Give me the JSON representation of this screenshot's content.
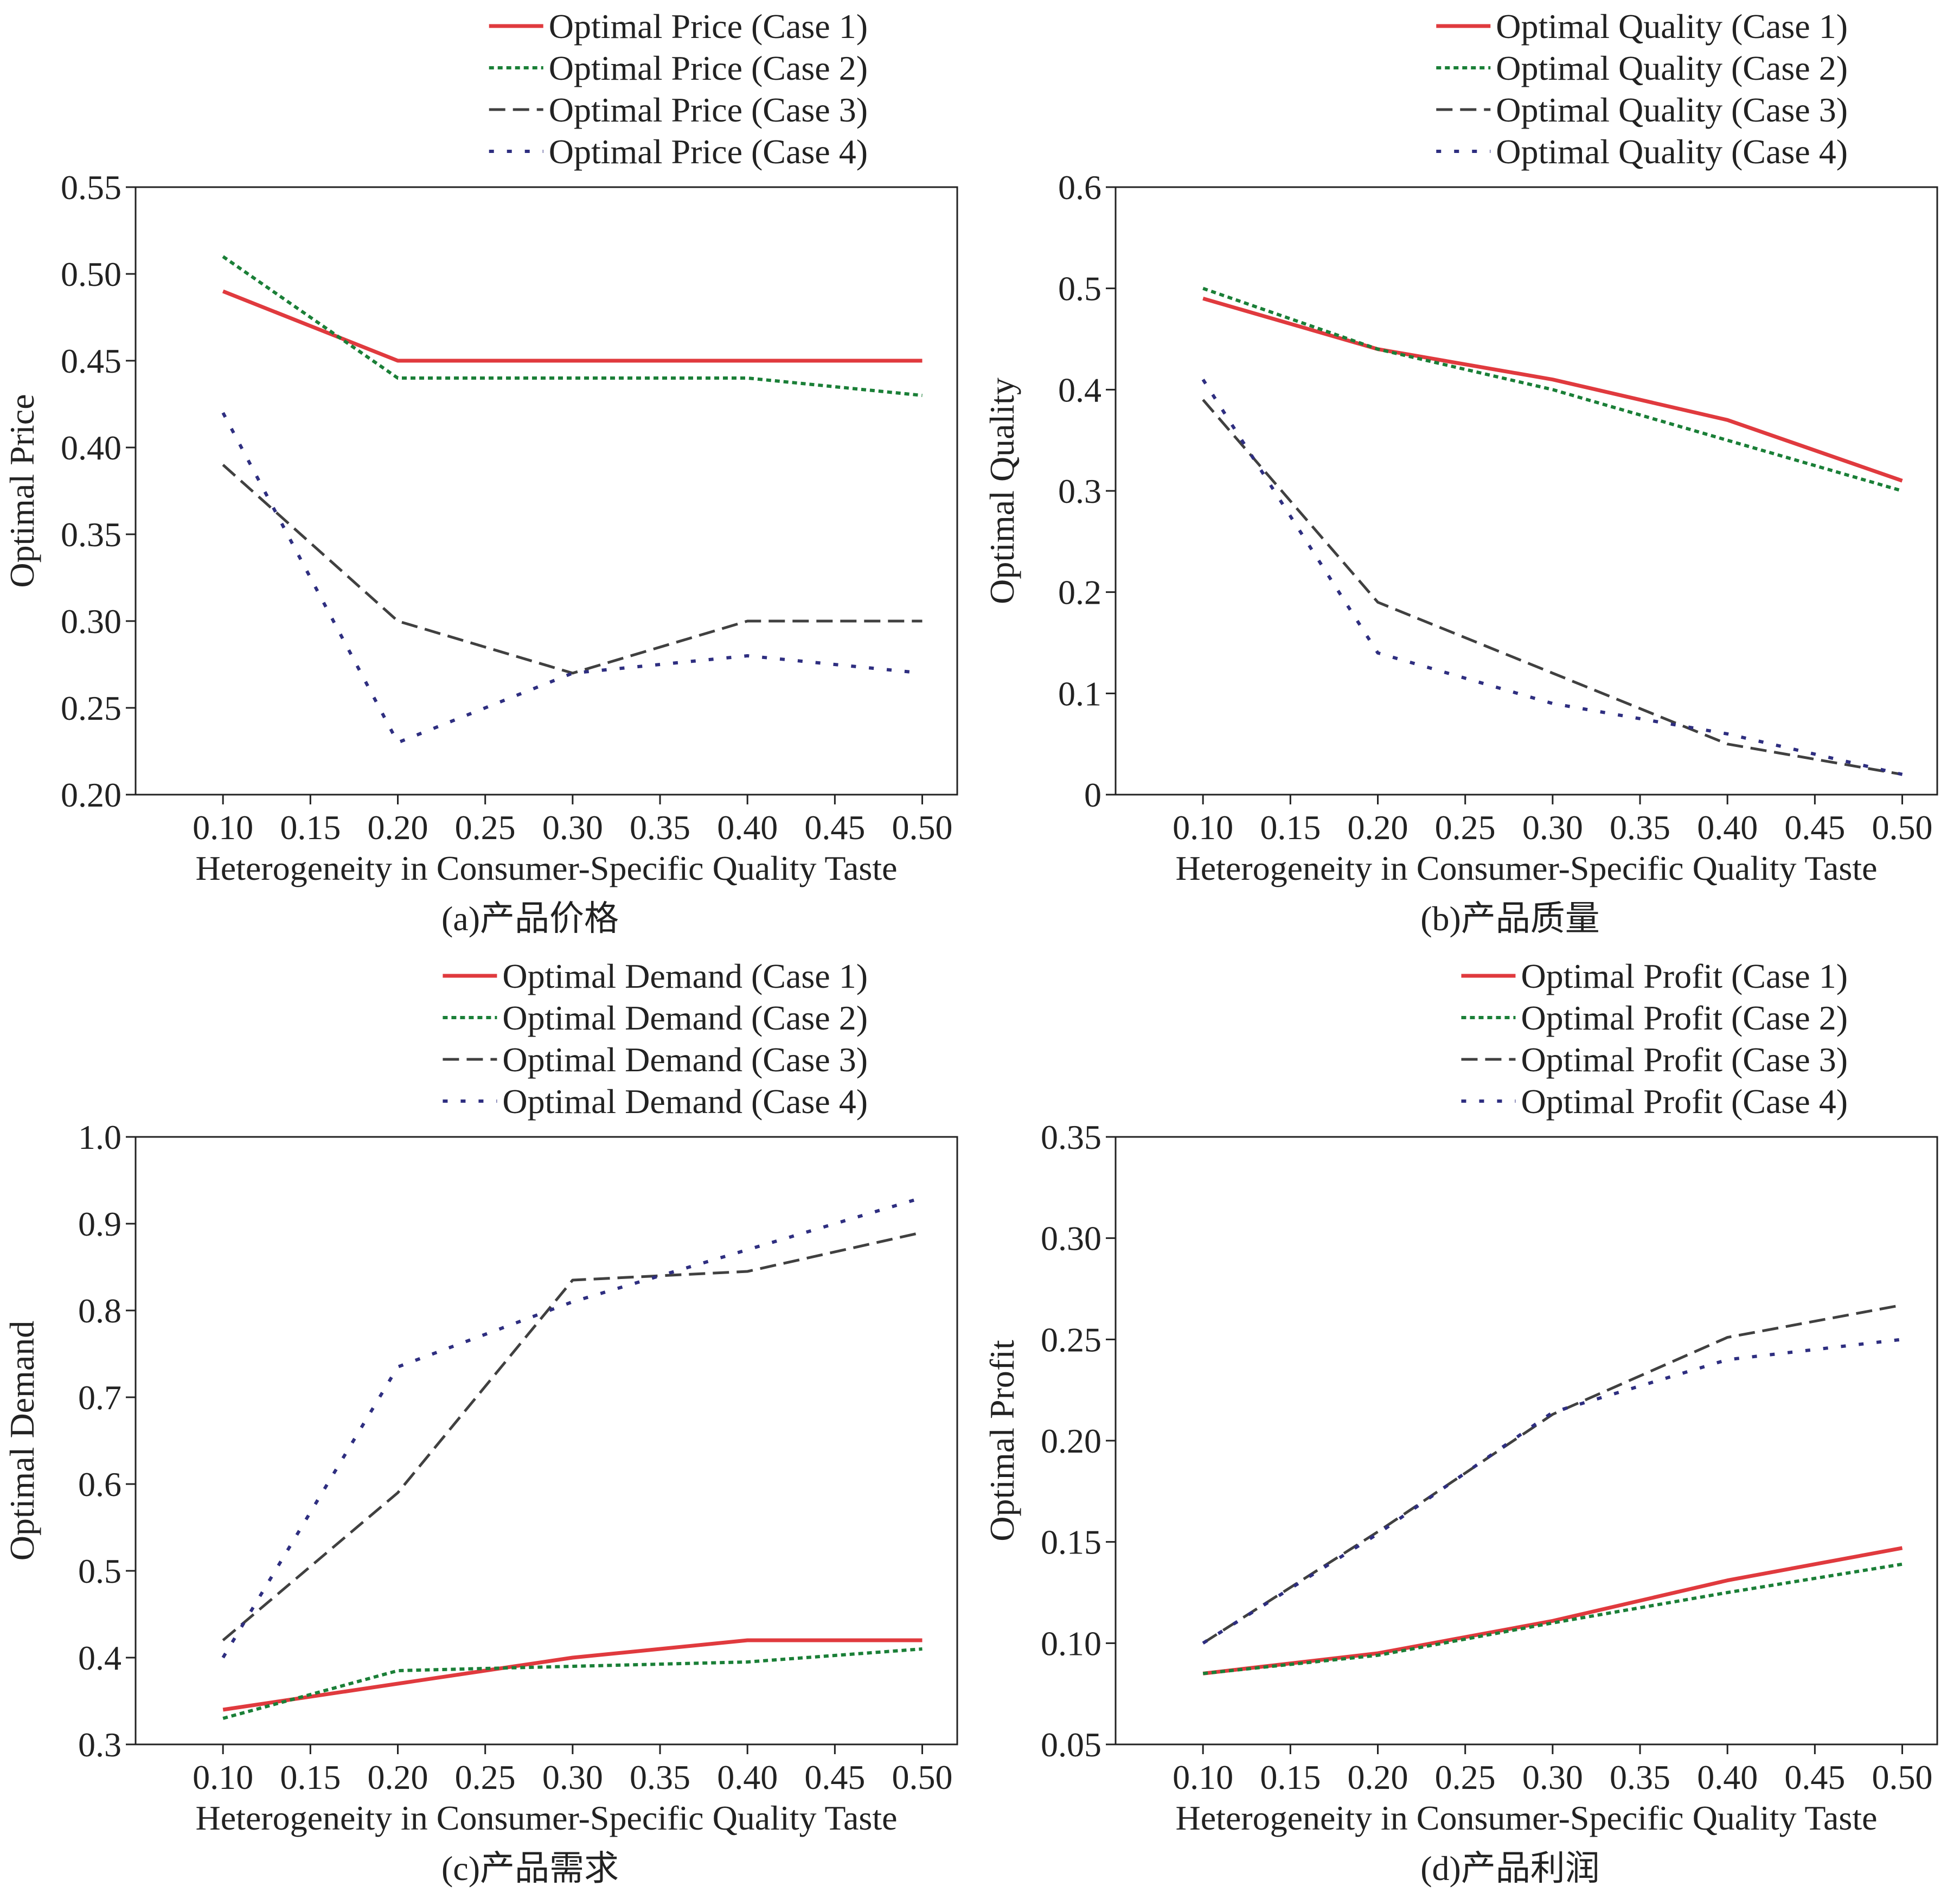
{
  "colors": {
    "case1": "#e03a3e",
    "case2": "#1a7f37",
    "case3": "#404040",
    "case4": "#2e2e80",
    "axis": "#222222"
  },
  "chart_data": [
    {
      "type": "line",
      "caption": "(a)产品价格",
      "xlabel": "Heterogeneity in Consumer-Specific Quality Taste",
      "ylabel": "Optimal Price",
      "x": [
        0.1,
        0.2,
        0.3,
        0.4,
        0.5
      ],
      "xticks": [
        "0.10",
        "0.15",
        "0.20",
        "0.25",
        "0.30",
        "0.35",
        "0.40",
        "0.45",
        "0.50"
      ],
      "xlim": [
        0.05,
        0.52
      ],
      "yticks": [
        "0.20",
        "0.25",
        "0.30",
        "0.35",
        "0.40",
        "0.45",
        "0.50",
        "0.55"
      ],
      "ylim": [
        0.2,
        0.55
      ],
      "legend_position": "top-right",
      "series": [
        {
          "name": "Optimal Price (Case 1)",
          "style": "solid",
          "values": [
            0.49,
            0.45,
            0.45,
            0.45,
            0.45
          ]
        },
        {
          "name": "Optimal Price (Case 2)",
          "style": "dotted",
          "values": [
            0.51,
            0.44,
            0.44,
            0.44,
            0.43
          ]
        },
        {
          "name": "Optimal Price (Case 3)",
          "style": "dashed",
          "values": [
            0.39,
            0.3,
            0.27,
            0.3,
            0.3
          ]
        },
        {
          "name": "Optimal Price (Case 4)",
          "style": "sparse-dotted",
          "values": [
            0.42,
            0.23,
            0.27,
            0.28,
            0.27
          ]
        }
      ]
    },
    {
      "type": "line",
      "caption": "(b)产品质量",
      "xlabel": "Heterogeneity in Consumer-Specific Quality Taste",
      "ylabel": "Optimal Quality",
      "x": [
        0.1,
        0.2,
        0.3,
        0.4,
        0.5
      ],
      "xticks": [
        "0.10",
        "0.15",
        "0.20",
        "0.25",
        "0.30",
        "0.35",
        "0.40",
        "0.45",
        "0.50"
      ],
      "xlim": [
        0.05,
        0.52
      ],
      "yticks": [
        "0",
        "0.1",
        "0.2",
        "0.3",
        "0.4",
        "0.5",
        "0.6"
      ],
      "ylim": [
        0,
        0.6
      ],
      "legend_position": "top-right",
      "series": [
        {
          "name": "Optimal Quality (Case 1)",
          "style": "solid",
          "values": [
            0.49,
            0.44,
            0.41,
            0.37,
            0.31
          ]
        },
        {
          "name": "Optimal Quality (Case 2)",
          "style": "dotted",
          "values": [
            0.5,
            0.44,
            0.4,
            0.35,
            0.3
          ]
        },
        {
          "name": "Optimal Quality (Case 3)",
          "style": "dashed",
          "values": [
            0.39,
            0.19,
            0.12,
            0.05,
            0.02
          ]
        },
        {
          "name": "Optimal Quality (Case 4)",
          "style": "sparse-dotted",
          "values": [
            0.41,
            0.14,
            0.09,
            0.06,
            0.02
          ]
        }
      ]
    },
    {
      "type": "line",
      "caption": "(c)产品需求",
      "xlabel": "Heterogeneity in Consumer-Specific Quality Taste",
      "ylabel": "Optimal Demand",
      "x": [
        0.1,
        0.2,
        0.3,
        0.4,
        0.5
      ],
      "xticks": [
        "0.10",
        "0.15",
        "0.20",
        "0.25",
        "0.30",
        "0.35",
        "0.40",
        "0.45",
        "0.50"
      ],
      "xlim": [
        0.05,
        0.52
      ],
      "yticks": [
        "0.3",
        "0.4",
        "0.5",
        "0.6",
        "0.7",
        "0.8",
        "0.9",
        "1.0"
      ],
      "ylim": [
        0.3,
        1.0
      ],
      "legend_position": "top-right",
      "series": [
        {
          "name": "Optimal Demand (Case 1)",
          "style": "solid",
          "values": [
            0.34,
            0.37,
            0.4,
            0.42,
            0.42
          ]
        },
        {
          "name": "Optimal Demand (Case 2)",
          "style": "dotted",
          "values": [
            0.33,
            0.385,
            0.39,
            0.395,
            0.41
          ]
        },
        {
          "name": "Optimal Demand (Case 3)",
          "style": "dashed",
          "values": [
            0.42,
            0.59,
            0.835,
            0.845,
            0.89
          ]
        },
        {
          "name": "Optimal Demand (Case 4)",
          "style": "sparse-dotted",
          "values": [
            0.4,
            0.735,
            0.81,
            0.87,
            0.93
          ]
        }
      ]
    },
    {
      "type": "line",
      "caption": "(d)产品利润",
      "xlabel": "Heterogeneity in Consumer-Specific Quality Taste",
      "ylabel": "Optimal Profit",
      "x": [
        0.1,
        0.2,
        0.3,
        0.4,
        0.5
      ],
      "xticks": [
        "0.10",
        "0.15",
        "0.20",
        "0.25",
        "0.30",
        "0.35",
        "0.40",
        "0.45",
        "0.50"
      ],
      "xlim": [
        0.05,
        0.52
      ],
      "yticks": [
        "0.05",
        "0.10",
        "0.15",
        "0.20",
        "0.25",
        "0.30",
        "0.35"
      ],
      "ylim": [
        0.05,
        0.35
      ],
      "legend_position": "top-right",
      "series": [
        {
          "name": "Optimal Profit (Case 1)",
          "style": "solid",
          "values": [
            0.085,
            0.095,
            0.111,
            0.131,
            0.147
          ]
        },
        {
          "name": "Optimal Profit (Case 2)",
          "style": "dotted",
          "values": [
            0.085,
            0.094,
            0.11,
            0.125,
            0.139
          ]
        },
        {
          "name": "Optimal Profit (Case 3)",
          "style": "dashed",
          "values": [
            0.1,
            0.155,
            0.213,
            0.251,
            0.267
          ]
        },
        {
          "name": "Optimal Profit (Case 4)",
          "style": "sparse-dotted",
          "values": [
            0.1,
            0.154,
            0.214,
            0.24,
            0.25
          ]
        }
      ]
    }
  ]
}
